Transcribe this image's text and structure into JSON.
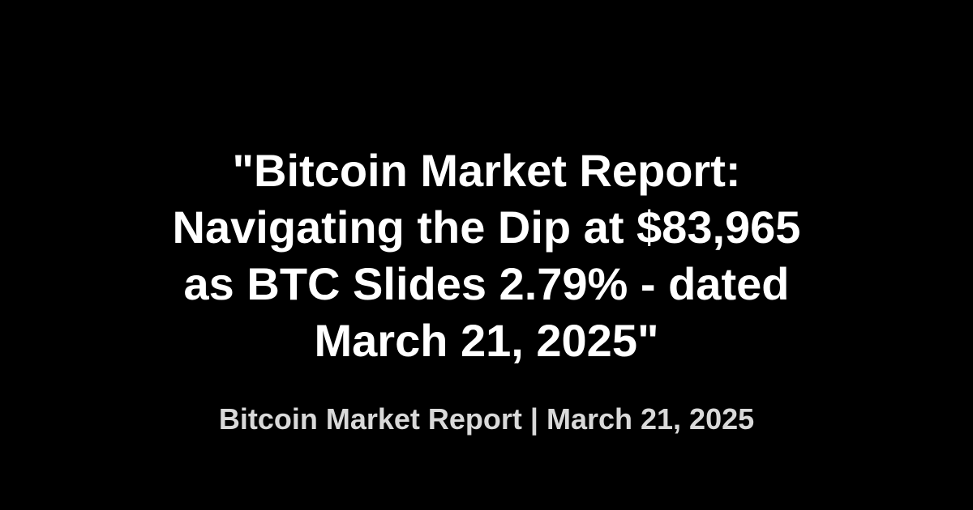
{
  "headline": {
    "lines": [
      "\"Bitcoin Market Report:",
      "Navigating the Dip at $83,965",
      "as BTC Slides 2.79% - dated",
      "March 21, 2025\""
    ]
  },
  "byline": {
    "text": "Bitcoin Market Report | March 21, 2025"
  },
  "colors": {
    "background": "#000000",
    "headline": "#ffffff",
    "byline": "#d9d9d9"
  }
}
